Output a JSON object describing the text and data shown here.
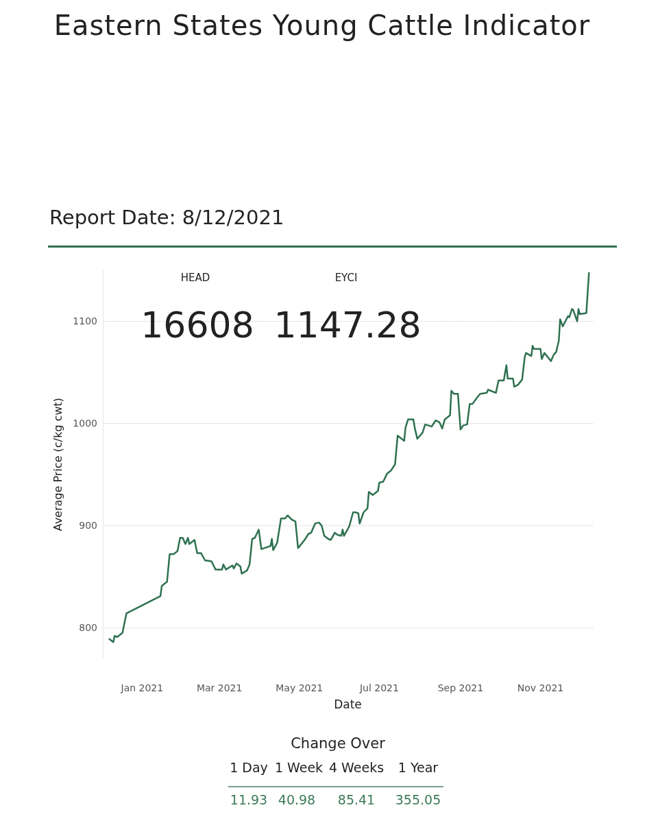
{
  "chart_data": {
    "type": "line",
    "title": "Eastern States Young Cattle Indicator",
    "subtitle": "Report Date: 8/12/2021",
    "xlabel": "Date",
    "ylabel": "Average Price (c/kg cwt)",
    "annotations": [
      "HEAD",
      "16608",
      "EYCI",
      "1147.28",
      "Change Over",
      "1 Day",
      "1 Week",
      "4 Weeks",
      "1 Year",
      "11.93",
      "40.98",
      "85.41",
      "355.05"
    ],
    "x": [
      "2020-12-07",
      "2020-12-10",
      "2020-12-11",
      "2020-12-13",
      "2020-12-17",
      "2020-12-20",
      "2021-01-15",
      "2021-01-16",
      "2021-01-20",
      "2021-01-22",
      "2021-01-25",
      "2021-01-28",
      "2021-01-30",
      "2021-02-01",
      "2021-02-03",
      "2021-02-05",
      "2021-02-06",
      "2021-02-10",
      "2021-02-12",
      "2021-02-15",
      "2021-02-18",
      "2021-02-23",
      "2021-02-26",
      "2021-03-03",
      "2021-03-04",
      "2021-03-06",
      "2021-03-11",
      "2021-03-12",
      "2021-03-14",
      "2021-03-17",
      "2021-03-18",
      "2021-03-22",
      "2021-03-24",
      "2021-03-26",
      "2021-03-28",
      "2021-03-31",
      "2021-04-02",
      "2021-04-09",
      "2021-04-10",
      "2021-04-11",
      "2021-04-14",
      "2021-04-17",
      "2021-04-20",
      "2021-04-22",
      "2021-04-25",
      "2021-04-28",
      "2021-04-30",
      "2021-05-05",
      "2021-05-08",
      "2021-05-10",
      "2021-05-13",
      "2021-05-16",
      "2021-05-18",
      "2021-05-20",
      "2021-05-23",
      "2021-05-25",
      "2021-05-28",
      "2021-05-30",
      "2021-06-02",
      "2021-06-03",
      "2021-06-04",
      "2021-06-08",
      "2021-06-11",
      "2021-06-13",
      "2021-06-15",
      "2021-06-16",
      "2021-06-19",
      "2021-06-22",
      "2021-06-23",
      "2021-06-26",
      "2021-06-30",
      "2021-07-01",
      "2021-07-04",
      "2021-07-07",
      "2021-07-10",
      "2021-07-13",
      "2021-07-15",
      "2021-07-20",
      "2021-07-21",
      "2021-07-23",
      "2021-07-27",
      "2021-07-28",
      "2021-07-30",
      "2021-08-03",
      "2021-08-05",
      "2021-08-10",
      "2021-08-13",
      "2021-08-16",
      "2021-08-18",
      "2021-08-20",
      "2021-08-24",
      "2021-08-25",
      "2021-08-27",
      "2021-08-30",
      "2021-09-01",
      "2021-09-03",
      "2021-09-06",
      "2021-09-08",
      "2021-09-10",
      "2021-09-14",
      "2021-09-16",
      "2021-09-21",
      "2021-09-22",
      "2021-09-24",
      "2021-09-28",
      "2021-09-30",
      "2021-10-04",
      "2021-10-06",
      "2021-10-07",
      "2021-10-11",
      "2021-10-12",
      "2021-10-15",
      "2021-10-18",
      "2021-10-20",
      "2021-10-21",
      "2021-10-25",
      "2021-10-26",
      "2021-10-27",
      "2021-11-01",
      "2021-11-02",
      "2021-11-04",
      "2021-11-09",
      "2021-11-11",
      "2021-11-13",
      "2021-11-15",
      "2021-11-16",
      "2021-11-18",
      "2021-11-22",
      "2021-11-23",
      "2021-11-25",
      "2021-11-26",
      "2021-11-29",
      "2021-11-30",
      "2021-12-01",
      "2021-12-06",
      "2021-12-08"
    ],
    "series": [
      {
        "color": "#2e7150",
        "values": [
          789,
          786,
          792,
          791,
          795,
          814,
          831,
          841,
          845,
          872,
          872,
          875,
          888,
          888,
          882,
          888,
          882,
          886,
          873,
          873,
          866,
          865,
          857,
          857,
          862,
          857,
          861,
          858,
          863,
          860,
          853,
          856,
          862,
          887,
          888,
          896,
          877,
          880,
          887,
          876,
          883,
          907,
          907,
          910,
          906,
          904,
          878,
          886,
          892,
          893,
          902,
          903,
          900,
          890,
          887,
          886,
          893,
          891,
          890,
          896,
          890,
          899,
          913,
          913,
          912,
          902,
          913,
          917,
          933,
          930,
          934,
          942,
          943,
          951,
          954,
          960,
          988,
          983,
          996,
          1004,
          1004,
          996,
          985,
          991,
          999,
          997,
          1003,
          1001,
          995,
          1004,
          1008,
          1032,
          1029,
          1029,
          994,
          998,
          999,
          1019,
          1019,
          1026,
          1029,
          1030,
          1033,
          1032,
          1030,
          1042,
          1042,
          1057,
          1044,
          1044,
          1036,
          1038,
          1043,
          1065,
          1069,
          1066,
          1076,
          1073,
          1073,
          1063,
          1069,
          1061,
          1067,
          1070,
          1081,
          1102,
          1095,
          1105,
          1104,
          1112,
          1111,
          1100,
          1112,
          1107,
          1108,
          1147.28
        ]
      }
    ],
    "xlim": [
      "2020-12-02",
      "2021-12-11"
    ],
    "xticks": [
      {
        "value": "2021-01-01",
        "label": "Jan 2021"
      },
      {
        "value": "2021-03-01",
        "label": "Mar 2021"
      },
      {
        "value": "2021-05-01",
        "label": "May 2021"
      },
      {
        "value": "2021-07-01",
        "label": "Jul 2021"
      },
      {
        "value": "2021-09-01",
        "label": "Sep 2021"
      },
      {
        "value": "2021-11-01",
        "label": "Nov 2021"
      }
    ],
    "ylim": [
      770,
      1150
    ],
    "yticks": [
      800,
      900,
      1000,
      1100
    ],
    "grid": "y",
    "marker": "none"
  }
}
